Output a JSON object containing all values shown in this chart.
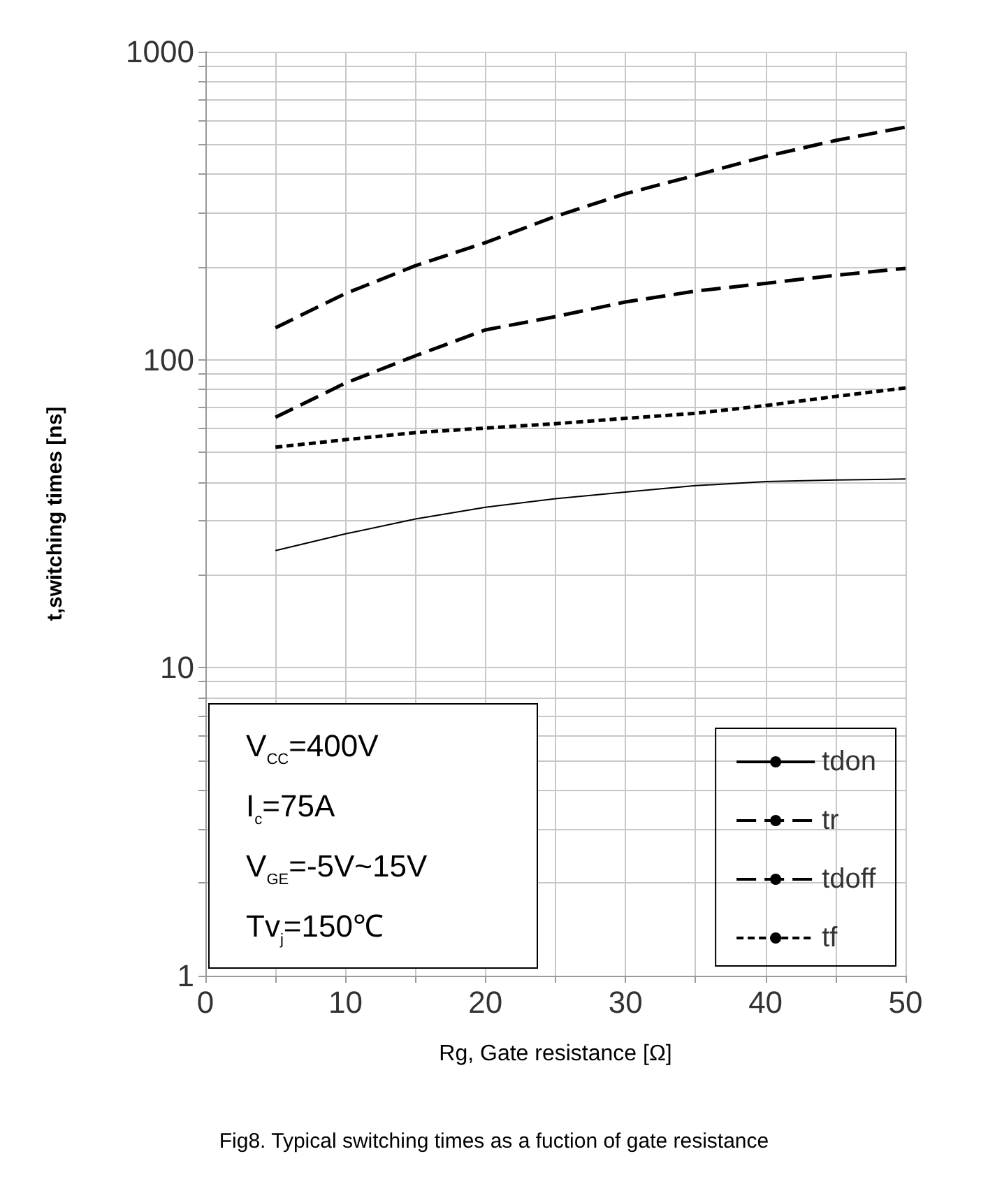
{
  "chart_data": {
    "type": "line",
    "xlabel": "Rg, Gate resistance [Ω]",
    "ylabel": "t,switching times [ns]",
    "x": [
      5,
      10,
      15,
      20,
      25,
      30,
      35,
      40,
      45,
      50
    ],
    "series": [
      {
        "name": "tdon",
        "color": "#000000",
        "line_style": "solid",
        "values": [
          24,
          27.2,
          30.4,
          33.2,
          35.4,
          37.2,
          39,
          40.2,
          40.7,
          41
        ]
      },
      {
        "name": "tr",
        "color": "#000000",
        "line_style": "dashed",
        "values": [
          65,
          84,
          103,
          125,
          138,
          154,
          167,
          177,
          188,
          198
        ]
      },
      {
        "name": "tdoff",
        "color": "#000000",
        "line_style": "dashed",
        "values": [
          127,
          164,
          202,
          240,
          292,
          346,
          397,
          457,
          515,
          569
        ]
      },
      {
        "name": "tf",
        "color": "#000000",
        "line_style": "dotted",
        "values": [
          52,
          55,
          58,
          60,
          62,
          64.5,
          67,
          71,
          76,
          81
        ]
      }
    ],
    "log": "y",
    "xlim": [
      0,
      50
    ],
    "xticks": [
      0,
      {
        "value": 5,
        "label": null
      },
      10,
      {
        "value": 15,
        "label": null
      },
      20,
      {
        "value": 25,
        "label": null
      },
      30,
      {
        "value": 35,
        "label": null
      },
      40,
      {
        "value": 45,
        "label": null
      },
      50
    ],
    "ylim": [
      1,
      1000
    ],
    "yticks": [
      1,
      {
        "value": 2,
        "label": null
      },
      {
        "value": 3,
        "label": null
      },
      {
        "value": 4,
        "label": null
      },
      {
        "value": 5,
        "label": null
      },
      {
        "value": 6,
        "label": null
      },
      {
        "value": 7,
        "label": null
      },
      {
        "value": 8,
        "label": null
      },
      {
        "value": 9,
        "label": null
      },
      10,
      {
        "value": 20,
        "label": null
      },
      {
        "value": 30,
        "label": null
      },
      {
        "value": 40,
        "label": null
      },
      {
        "value": 50,
        "label": null
      },
      {
        "value": 60,
        "label": null
      },
      {
        "value": 70,
        "label": null
      },
      {
        "value": 80,
        "label": null
      },
      {
        "value": 90,
        "label": null
      },
      100,
      {
        "value": 200,
        "label": null
      },
      {
        "value": 300,
        "label": null
      },
      {
        "value": 400,
        "label": null
      },
      {
        "value": 500,
        "label": null
      },
      {
        "value": 600,
        "label": null
      },
      {
        "value": 700,
        "label": null
      },
      {
        "value": 800,
        "label": null
      },
      {
        "value": 900,
        "label": null
      },
      1000
    ],
    "grid": true,
    "legend": "bottom right",
    "marker": "none",
    "annotations": [
      "V$_{CC}$=400V",
      "I$_{c}$=75A",
      "V$_{GE}$=-5V~15V",
      "Tv$_{j}$=150℃",
      "Fig8. Typical switching times as a fuction of gate resistance"
    ]
  }
}
